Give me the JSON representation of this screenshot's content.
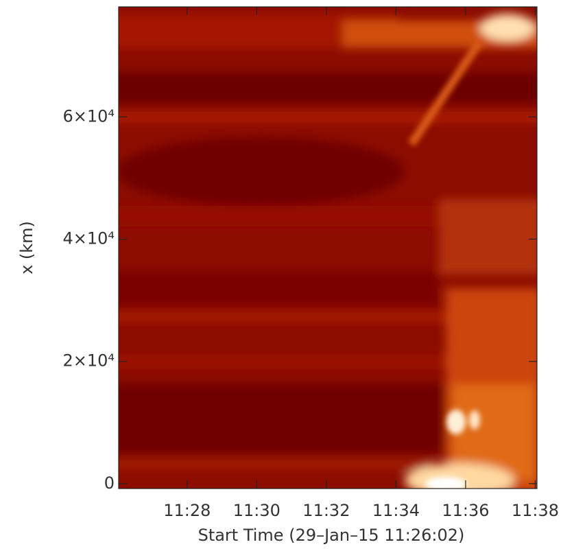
{
  "chart_data": {
    "type": "heatmap",
    "x_label": "Start Time (29–Jan–15 11:26:02)",
    "y_label": "x (km)",
    "xlim": [
      686.0333,
      698.05
    ],
    "xticks": [
      {
        "value": 688,
        "label": "11:28"
      },
      {
        "value": 690,
        "label": "11:30"
      },
      {
        "value": 692,
        "label": "11:32"
      },
      {
        "value": 694,
        "label": "11:34"
      },
      {
        "value": 696,
        "label": "11:36"
      },
      {
        "value": 698,
        "label": "11:38"
      }
    ],
    "ylim": [
      -800,
      78000
    ],
    "yticks": [
      0,
      {
        "value": 20000,
        "label": "2×10⁴"
      },
      {
        "value": 40000,
        "label": "4×10⁴"
      },
      {
        "value": 60000,
        "label": "6×10⁴"
      }
    ]
  }
}
